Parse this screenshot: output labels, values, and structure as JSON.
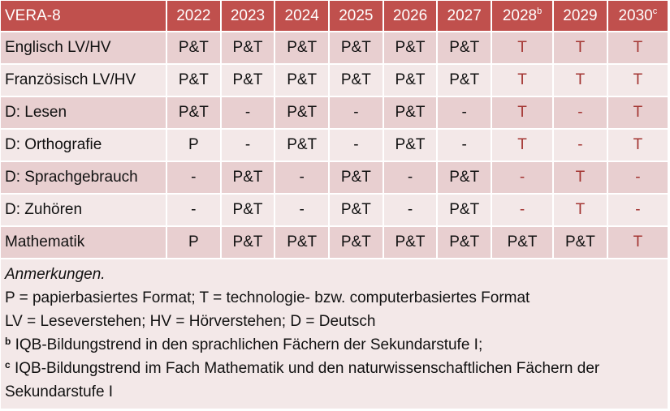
{
  "table": {
    "corner": "VERA-8",
    "years": [
      {
        "label": "2022",
        "sup": ""
      },
      {
        "label": "2023",
        "sup": ""
      },
      {
        "label": "2024",
        "sup": ""
      },
      {
        "label": "2025",
        "sup": ""
      },
      {
        "label": "2026",
        "sup": ""
      },
      {
        "label": "2027",
        "sup": ""
      },
      {
        "label": "2028",
        "sup": "b"
      },
      {
        "label": "2029",
        "sup": ""
      },
      {
        "label": "2030",
        "sup": "c"
      }
    ],
    "rows": [
      {
        "label": "Englisch LV/HV",
        "cells": [
          "P&T",
          "P&T",
          "P&T",
          "P&T",
          "P&T",
          "P&T",
          "T",
          "T",
          "T"
        ],
        "highlight": [
          false,
          false,
          false,
          false,
          false,
          false,
          true,
          true,
          true
        ]
      },
      {
        "label": "Französisch LV/HV",
        "cells": [
          "P&T",
          "P&T",
          "P&T",
          "P&T",
          "P&T",
          "P&T",
          "T",
          "T",
          "T"
        ],
        "highlight": [
          false,
          false,
          false,
          false,
          false,
          false,
          true,
          true,
          true
        ]
      },
      {
        "label": "D: Lesen",
        "cells": [
          "P&T",
          "-",
          "P&T",
          "-",
          "P&T",
          "-",
          "T",
          "-",
          "T"
        ],
        "highlight": [
          false,
          false,
          false,
          false,
          false,
          false,
          true,
          true,
          true
        ]
      },
      {
        "label": "D: Orthografie",
        "cells": [
          "P",
          "-",
          "P&T",
          "-",
          "P&T",
          "-",
          "T",
          "-",
          "T"
        ],
        "highlight": [
          false,
          false,
          false,
          false,
          false,
          false,
          true,
          true,
          true
        ]
      },
      {
        "label": "D: Sprachgebrauch",
        "cells": [
          "-",
          "P&T",
          "-",
          "P&T",
          "-",
          "P&T",
          "-",
          "T",
          "-"
        ],
        "highlight": [
          false,
          false,
          false,
          false,
          false,
          false,
          true,
          true,
          true
        ]
      },
      {
        "label": "D: Zuhören",
        "cells": [
          "-",
          "P&T",
          "-",
          "P&T",
          "-",
          "P&T",
          "-",
          "T",
          "-"
        ],
        "highlight": [
          false,
          false,
          false,
          false,
          false,
          false,
          true,
          true,
          true
        ]
      },
      {
        "label": "Mathematik",
        "cells": [
          "P",
          "P&T",
          "P&T",
          "P&T",
          "P&T",
          "P&T",
          "P&T",
          "P&T",
          "T"
        ],
        "highlight": [
          false,
          false,
          false,
          false,
          false,
          false,
          false,
          false,
          true
        ]
      }
    ]
  },
  "notes": {
    "title": "Anmerkungen.",
    "line1": "P = papierbasiertes Format; T = technologie- bzw. computerbasiertes Format",
    "line2": "LV = Leseverstehen; HV = Hörverstehen; D = Deutsch",
    "fn_b_mark": "b",
    "fn_b": " IQB-Bildungstrend in den sprachlichen Fächern der Sekundarstufe I;",
    "fn_c_mark": "c",
    "fn_c": " IQB-Bildungstrend im Fach Mathematik und den naturwissenschaftlichen Fächern der Sekundarstufe I"
  },
  "colors": {
    "header": "#c0504d",
    "row_dark": "#e8cfd0",
    "row_light": "#f3e8e8",
    "highlight_text": "#a33532"
  }
}
